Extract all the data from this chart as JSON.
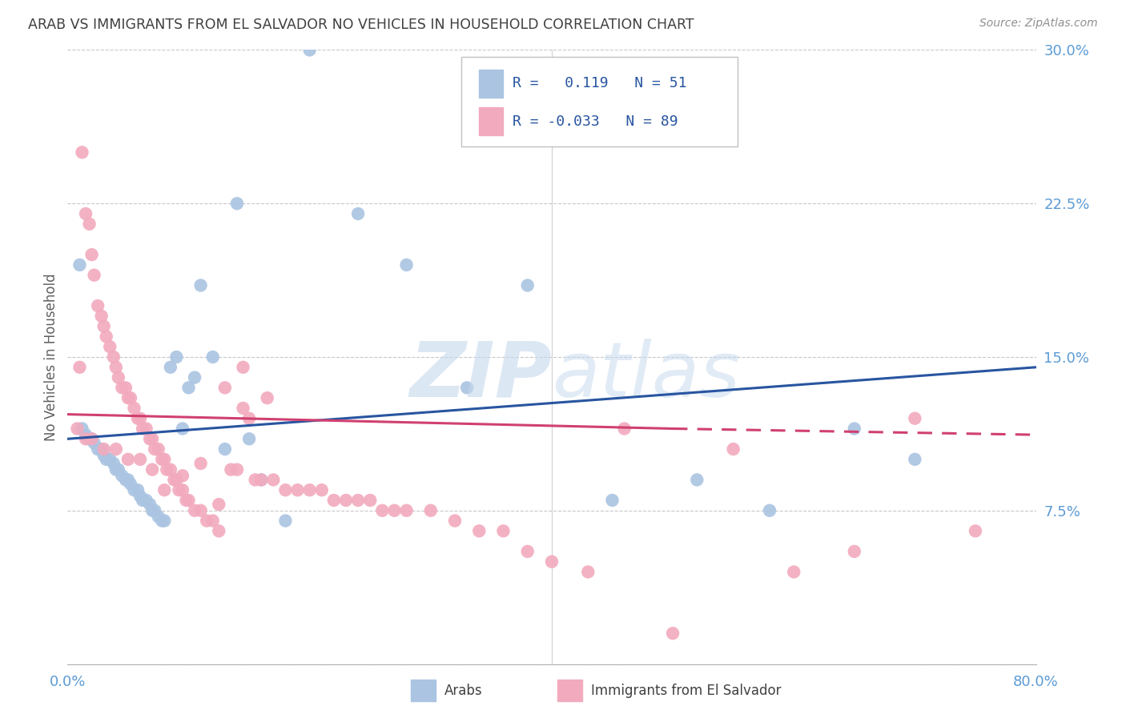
{
  "title": "ARAB VS IMMIGRANTS FROM EL SALVADOR NO VEHICLES IN HOUSEHOLD CORRELATION CHART",
  "source": "Source: ZipAtlas.com",
  "ylabel": "No Vehicles in Household",
  "xlim": [
    0.0,
    80.0
  ],
  "ylim": [
    0.0,
    30.0
  ],
  "yticks": [
    0.0,
    7.5,
    15.0,
    22.5,
    30.0
  ],
  "ytick_labels": [
    "",
    "7.5%",
    "15.0%",
    "22.5%",
    "30.0%"
  ],
  "xtick_positions": [
    0.0,
    20.0,
    40.0,
    60.0,
    80.0
  ],
  "xtick_labels": [
    "0.0%",
    "",
    "",
    "",
    "80.0%"
  ],
  "legend_arab_R": " 0.119",
  "legend_arab_N": "51",
  "legend_salvador_R": "-0.033",
  "legend_salvador_N": "89",
  "arab_color": "#aac4e2",
  "salvador_color": "#f2aabe",
  "trendline_arab_color": "#2855a0",
  "trendline_salvador_color": "#d04070",
  "background_color": "#ffffff",
  "title_color": "#404040",
  "axis_label_color": "#5b9bd5",
  "arab_trendline_x0": 0,
  "arab_trendline_y0": 11.0,
  "arab_trendline_x1": 80,
  "arab_trendline_y1": 14.5,
  "sal_trendline_x0": 0,
  "sal_trendline_y0": 12.2,
  "sal_trendline_x1": 50,
  "sal_trendline_y1": 11.5,
  "sal_trendline_dash_x0": 50,
  "sal_trendline_dash_y0": 11.5,
  "sal_trendline_dash_x1": 80,
  "sal_trendline_dash_y1": 11.2,
  "arab_x": [
    1.0,
    1.2,
    1.5,
    1.8,
    2.0,
    2.2,
    2.5,
    2.8,
    3.0,
    3.2,
    3.5,
    3.8,
    4.0,
    4.2,
    4.5,
    4.8,
    5.0,
    5.2,
    5.5,
    5.8,
    6.0,
    6.2,
    6.5,
    6.8,
    7.0,
    7.2,
    7.5,
    7.8,
    8.0,
    8.5,
    9.0,
    9.5,
    10.0,
    10.5,
    11.0,
    12.0,
    13.0,
    14.0,
    15.0,
    16.0,
    18.0,
    20.0,
    24.0,
    28.0,
    33.0,
    38.0,
    45.0,
    52.0,
    58.0,
    65.0,
    70.0
  ],
  "arab_y": [
    19.5,
    11.5,
    11.2,
    11.0,
    11.0,
    10.8,
    10.5,
    10.5,
    10.2,
    10.0,
    10.0,
    9.8,
    9.5,
    9.5,
    9.2,
    9.0,
    9.0,
    8.8,
    8.5,
    8.5,
    8.2,
    8.0,
    8.0,
    7.8,
    7.5,
    7.5,
    7.2,
    7.0,
    7.0,
    14.5,
    15.0,
    11.5,
    13.5,
    14.0,
    18.5,
    15.0,
    10.5,
    22.5,
    11.0,
    9.0,
    7.0,
    30.0,
    22.0,
    19.5,
    13.5,
    18.5,
    8.0,
    9.0,
    7.5,
    11.5,
    10.0
  ],
  "sal_x": [
    0.8,
    1.0,
    1.2,
    1.5,
    1.8,
    2.0,
    2.2,
    2.5,
    2.8,
    3.0,
    3.2,
    3.5,
    3.8,
    4.0,
    4.2,
    4.5,
    4.8,
    5.0,
    5.2,
    5.5,
    5.8,
    6.0,
    6.2,
    6.5,
    6.8,
    7.0,
    7.2,
    7.5,
    7.8,
    8.0,
    8.2,
    8.5,
    8.8,
    9.0,
    9.2,
    9.5,
    9.8,
    10.0,
    10.5,
    11.0,
    11.5,
    12.0,
    12.5,
    13.0,
    13.5,
    14.0,
    14.5,
    15.0,
    15.5,
    16.0,
    17.0,
    18.0,
    19.0,
    20.0,
    21.0,
    22.0,
    23.0,
    24.0,
    25.0,
    26.0,
    27.0,
    28.0,
    30.0,
    32.0,
    34.0,
    36.0,
    38.0,
    40.0,
    43.0,
    46.0,
    50.0,
    55.0,
    60.0,
    65.0,
    70.0,
    75.0,
    1.5,
    2.0,
    3.0,
    4.0,
    5.0,
    6.0,
    7.0,
    8.0,
    9.5,
    11.0,
    12.5,
    14.5,
    16.5
  ],
  "sal_y": [
    11.5,
    14.5,
    25.0,
    22.0,
    21.5,
    20.0,
    19.0,
    17.5,
    17.0,
    16.5,
    16.0,
    15.5,
    15.0,
    14.5,
    14.0,
    13.5,
    13.5,
    13.0,
    13.0,
    12.5,
    12.0,
    12.0,
    11.5,
    11.5,
    11.0,
    11.0,
    10.5,
    10.5,
    10.0,
    10.0,
    9.5,
    9.5,
    9.0,
    9.0,
    8.5,
    8.5,
    8.0,
    8.0,
    7.5,
    7.5,
    7.0,
    7.0,
    6.5,
    13.5,
    9.5,
    9.5,
    14.5,
    12.0,
    9.0,
    9.0,
    9.0,
    8.5,
    8.5,
    8.5,
    8.5,
    8.0,
    8.0,
    8.0,
    8.0,
    7.5,
    7.5,
    7.5,
    7.5,
    7.0,
    6.5,
    6.5,
    5.5,
    5.0,
    4.5,
    11.5,
    1.5,
    10.5,
    4.5,
    5.5,
    12.0,
    6.5,
    11.0,
    11.0,
    10.5,
    10.5,
    10.0,
    10.0,
    9.5,
    8.5,
    9.2,
    9.8,
    7.8,
    12.5,
    13.0
  ]
}
